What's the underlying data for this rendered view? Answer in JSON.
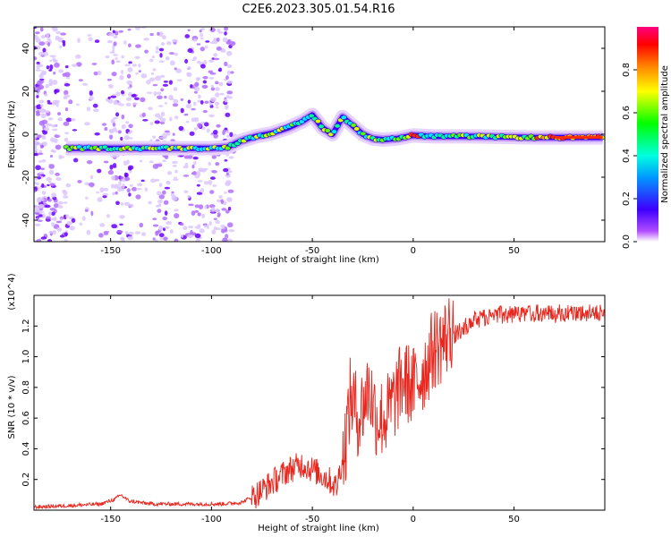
{
  "title": "C2E6.2023.305.01.54.R16",
  "chart_data": [
    {
      "type": "heatmap",
      "xlabel": "Height of straight line (km)",
      "ylabel": "Frequency (Hz)",
      "xlim": [
        -188,
        95
      ],
      "ylim": [
        -50,
        50
      ],
      "xticks": [
        -150,
        -100,
        -50,
        0,
        50
      ],
      "yticks": [
        -40,
        -20,
        0,
        20,
        40
      ],
      "colorbar": {
        "label": "Normalized spectral amplitude",
        "range": [
          0,
          1
        ],
        "ticks": [
          0.0,
          0.2,
          0.4,
          0.6,
          0.8
        ]
      },
      "ridge": [
        {
          "x": -172,
          "y": -6.5
        },
        {
          "x": -160,
          "y": -6.5
        },
        {
          "x": -145,
          "y": -6.5
        },
        {
          "x": -130,
          "y": -6.5
        },
        {
          "x": -115,
          "y": -6.5
        },
        {
          "x": -100,
          "y": -6.5
        },
        {
          "x": -92,
          "y": -6.0
        },
        {
          "x": -85,
          "y": -3.0
        },
        {
          "x": -78,
          "y": -1.0
        },
        {
          "x": -70,
          "y": 0.5
        },
        {
          "x": -62,
          "y": 3.0
        },
        {
          "x": -55,
          "y": 6.0
        },
        {
          "x": -50,
          "y": 9.0
        },
        {
          "x": -45,
          "y": 3.0
        },
        {
          "x": -40,
          "y": 0.0
        },
        {
          "x": -35,
          "y": 8.0
        },
        {
          "x": -30,
          "y": 4.0
        },
        {
          "x": -25,
          "y": 0.0
        },
        {
          "x": -20,
          "y": -2.0
        },
        {
          "x": -15,
          "y": -2.5
        },
        {
          "x": -8,
          "y": -2.0
        },
        {
          "x": 0,
          "y": -0.5
        },
        {
          "x": 10,
          "y": -1.0
        },
        {
          "x": 30,
          "y": -1.0
        },
        {
          "x": 60,
          "y": -1.5
        },
        {
          "x": 94,
          "y": -1.5
        }
      ]
    },
    {
      "type": "line",
      "xlabel": "Height of straight line (km)",
      "ylabel": "SNR (10 * v/v)",
      "y_multiplier": "(x10^4)",
      "xlim": [
        -188,
        95
      ],
      "ylim": [
        0,
        1.4
      ],
      "xticks": [
        -150,
        -100,
        -50,
        0,
        50
      ],
      "yticks": [
        0.2,
        0.4,
        0.6,
        0.8,
        1.0,
        1.2
      ],
      "series": [
        {
          "color": "#e8261d",
          "points": [
            [
              -188,
              0.02
            ],
            [
              -170,
              0.03
            ],
            [
              -155,
              0.04
            ],
            [
              -148,
              0.07
            ],
            [
              -145,
              0.1
            ],
            [
              -141,
              0.06
            ],
            [
              -130,
              0.04
            ],
            [
              -110,
              0.04
            ],
            [
              -95,
              0.04
            ],
            [
              -85,
              0.05
            ],
            [
              -78,
              0.1
            ],
            [
              -70,
              0.18
            ],
            [
              -62,
              0.26
            ],
            [
              -55,
              0.3
            ],
            [
              -48,
              0.25
            ],
            [
              -42,
              0.2
            ],
            [
              -38,
              0.15
            ],
            [
              -34,
              0.4
            ],
            [
              -31,
              0.75
            ],
            [
              -27,
              0.6
            ],
            [
              -22,
              0.8
            ],
            [
              -18,
              0.6
            ],
            [
              -14,
              0.6
            ],
            [
              -10,
              0.7
            ],
            [
              -5,
              0.85
            ],
            [
              0,
              0.8
            ],
            [
              5,
              0.9
            ],
            [
              10,
              1.05
            ],
            [
              15,
              1.1
            ],
            [
              20,
              1.2
            ],
            [
              25,
              1.25
            ],
            [
              30,
              1.3
            ],
            [
              40,
              1.33
            ],
            [
              50,
              1.34
            ],
            [
              60,
              1.34
            ],
            [
              70,
              1.34
            ],
            [
              80,
              1.35
            ],
            [
              90,
              1.34
            ],
            [
              95,
              1.35
            ]
          ]
        }
      ]
    }
  ]
}
